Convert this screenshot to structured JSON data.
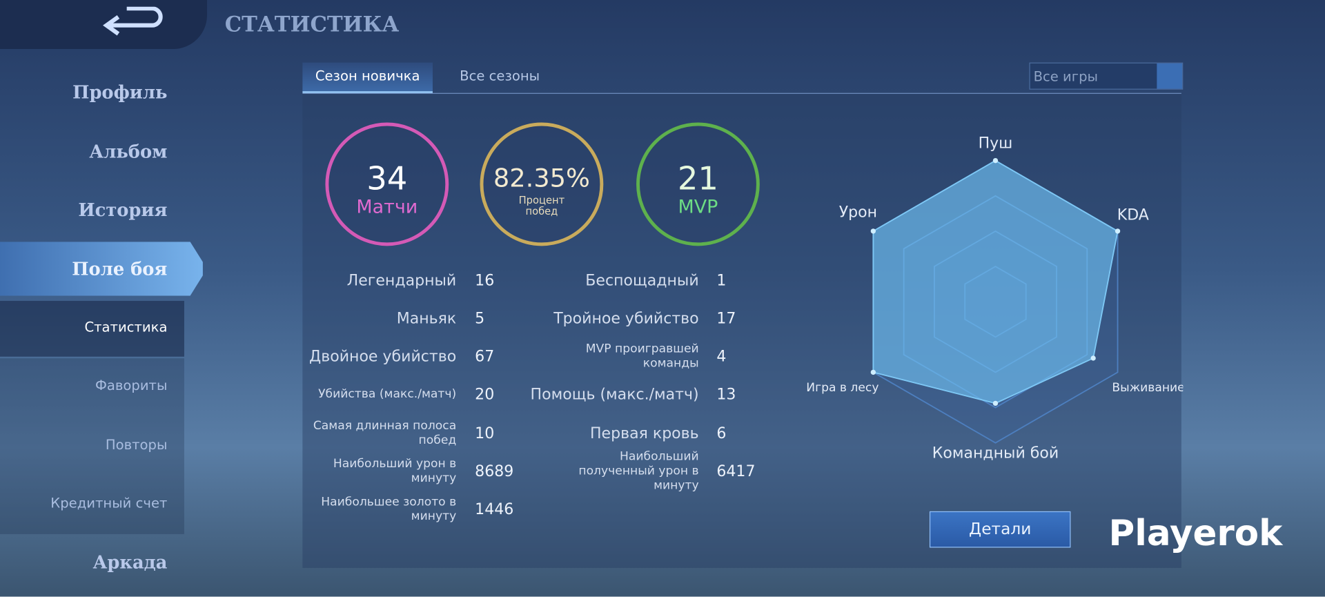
{
  "header": {
    "title": "СТАТИСТИКА"
  },
  "sidebar": {
    "items": [
      "Профиль",
      "Альбом",
      "История",
      "Поле боя",
      "Статистика",
      "Фавориты",
      "Повторы",
      "Кредитный счет",
      "Аркада"
    ]
  },
  "tabs": [
    "Сезон новичка",
    "Все сезоны"
  ],
  "filter": "Все игры",
  "summary": [
    {
      "value": 34,
      "label": "Матчи"
    },
    {
      "value": "82.35%",
      "label": "Процент побед"
    },
    {
      "value": 21,
      "label": "MVP"
    }
  ],
  "stats": {
    "left": [
      [
        "Легендарный",
        16
      ],
      [
        "Маньяк",
        5
      ],
      [
        "Двойное убийство",
        67
      ],
      [
        "Убийства (макс./матч)",
        20
      ],
      [
        "Самая длинная полоса побед",
        10
      ],
      [
        "Наибольший урон в минуту",
        8689
      ],
      [
        "Наибольшее золото в минуту",
        1446
      ]
    ],
    "right": [
      [
        "Беспощадный",
        1
      ],
      [
        "Тройное убийство",
        17
      ],
      [
        "MVP проигравшей команды",
        4
      ],
      [
        "Помощь (макс./матч)",
        13
      ],
      [
        "Первая кровь",
        6
      ],
      [
        "Наибольший полученный урон в минуту",
        6417
      ]
    ]
  },
  "radar": {
    "axes": [
      "Пуш",
      "KDA",
      "Выживание",
      "Командный бой",
      "Игра в лесу",
      "Урон"
    ],
    "values": [
      1,
      1,
      0.8,
      0.72,
      1,
      1
    ],
    "range": [
      0,
      1
    ]
  },
  "button": "Детали",
  "watermark": "Playerok"
}
